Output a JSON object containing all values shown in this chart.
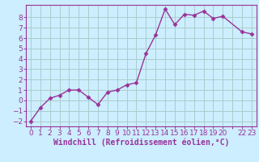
{
  "x": [
    0,
    1,
    2,
    3,
    4,
    5,
    6,
    7,
    8,
    9,
    10,
    11,
    12,
    13,
    14,
    15,
    16,
    17,
    18,
    19,
    20,
    22,
    23
  ],
  "y": [
    -2.0,
    -0.7,
    0.2,
    0.5,
    1.0,
    1.0,
    0.3,
    -0.4,
    0.8,
    1.0,
    1.5,
    1.7,
    4.5,
    6.3,
    8.8,
    7.3,
    8.3,
    8.2,
    8.6,
    7.9,
    8.1,
    6.6,
    6.4
  ],
  "line_color": "#993399",
  "marker": "D",
  "marker_size": 2.5,
  "bg_color": "#cceeff",
  "grid_color": "#aacccc",
  "xlabel": "Windchill (Refroidissement éolien,°C)",
  "xlim": [
    -0.5,
    23.5
  ],
  "ylim": [
    -2.5,
    9.2
  ],
  "yticks": [
    -2,
    -1,
    0,
    1,
    2,
    3,
    4,
    5,
    6,
    7,
    8
  ],
  "tick_color": "#993399",
  "axis_color": "#993399",
  "font_size": 6.5,
  "xlabel_font_size": 7.0
}
